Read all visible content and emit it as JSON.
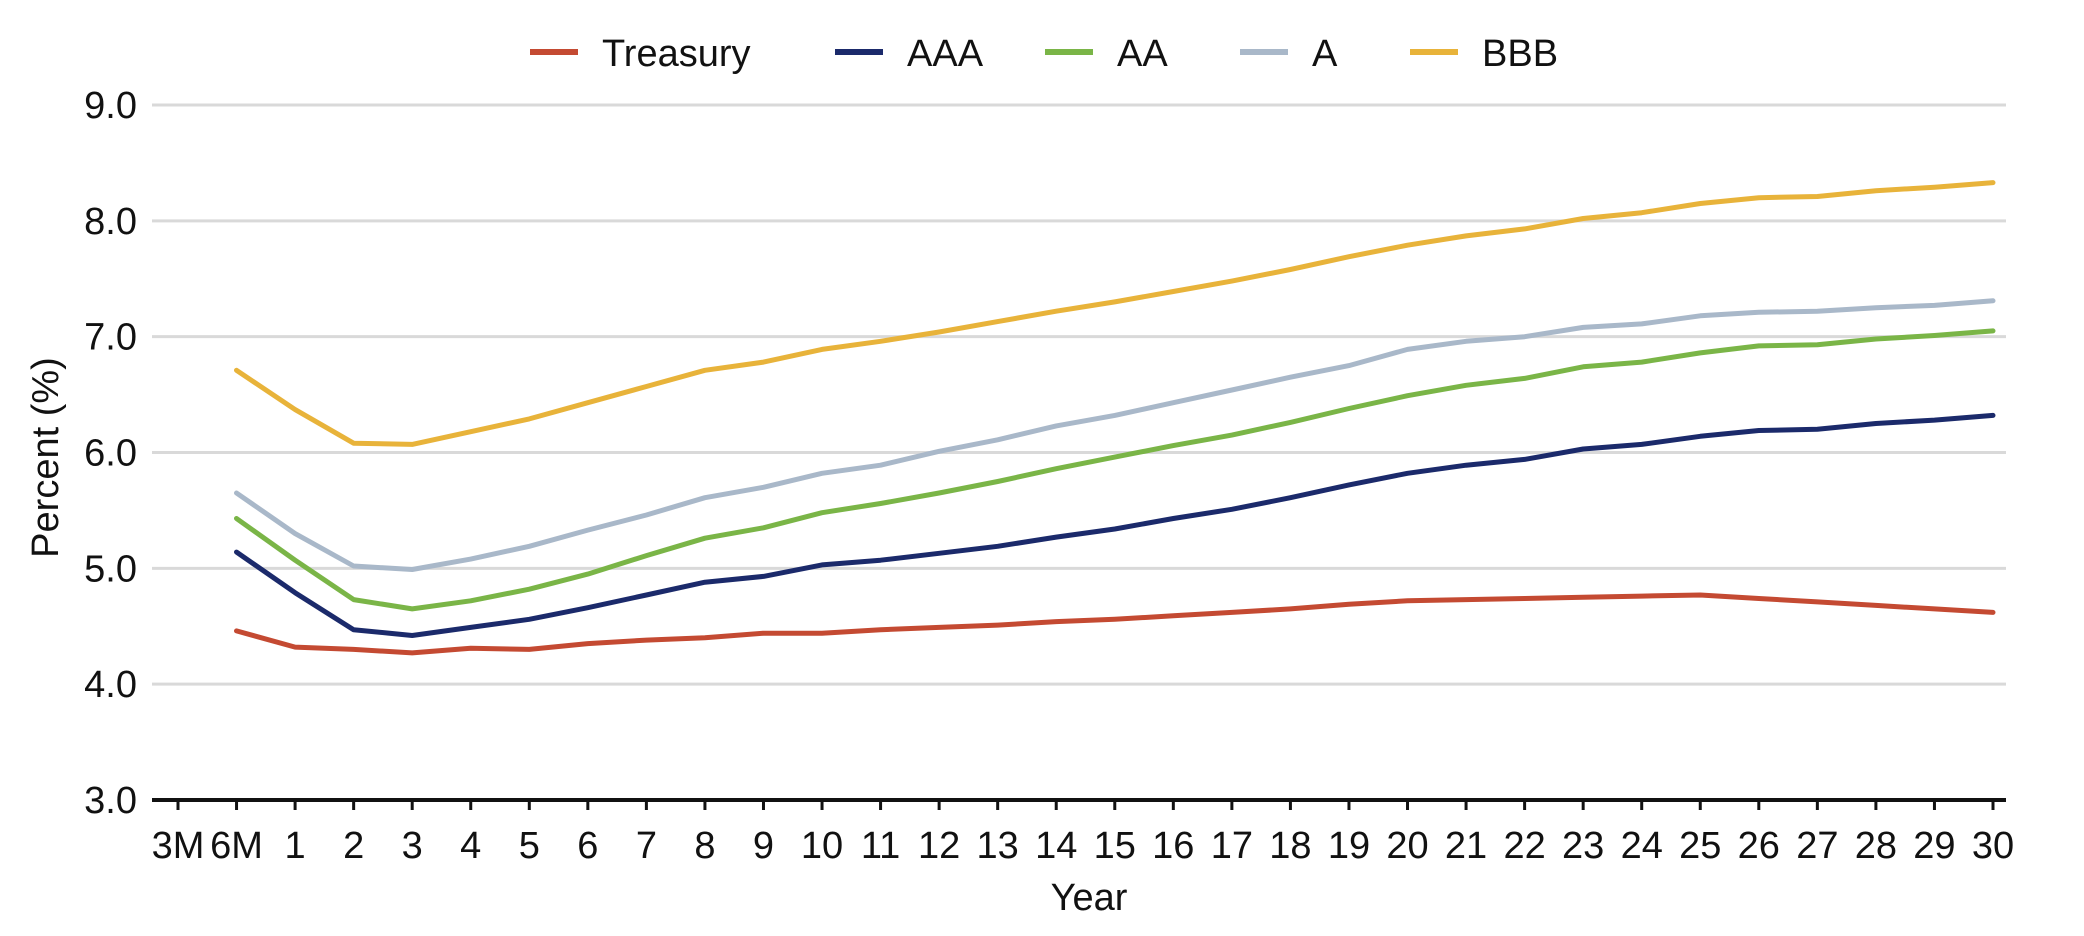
{
  "chart_data": {
    "type": "line",
    "xlabel": "Year",
    "ylabel": "Percent (%)",
    "categories": [
      "3M",
      "6M",
      "1",
      "2",
      "3",
      "4",
      "5",
      "6",
      "7",
      "8",
      "9",
      "10",
      "11",
      "12",
      "13",
      "14",
      "15",
      "16",
      "17",
      "18",
      "19",
      "20",
      "21",
      "22",
      "23",
      "24",
      "25",
      "26",
      "27",
      "28",
      "29",
      "30"
    ],
    "ylim": [
      3.0,
      9.0
    ],
    "yticks": [
      "3.0",
      "4.0",
      "5.0",
      "6.0",
      "7.0",
      "8.0",
      "9.0"
    ],
    "grid": true,
    "legend_position": "top",
    "series": [
      {
        "name": "Treasury",
        "color": "#c44a32",
        "values": [
          null,
          4.46,
          4.32,
          4.3,
          4.27,
          4.31,
          4.3,
          4.35,
          4.38,
          4.4,
          4.44,
          4.44,
          4.47,
          4.49,
          4.51,
          4.54,
          4.56,
          4.59,
          4.62,
          4.65,
          4.69,
          4.72,
          4.73,
          4.74,
          4.75,
          4.76,
          4.77,
          4.74,
          4.71,
          4.68,
          4.65,
          4.62
        ]
      },
      {
        "name": "AAA",
        "color": "#1b2a6b",
        "values": [
          null,
          5.14,
          4.79,
          4.47,
          4.42,
          4.49,
          4.56,
          4.66,
          4.77,
          4.88,
          4.93,
          5.03,
          5.07,
          5.13,
          5.19,
          5.27,
          5.34,
          5.43,
          5.51,
          5.61,
          5.72,
          5.82,
          5.89,
          5.94,
          6.03,
          6.07,
          6.14,
          6.19,
          6.2,
          6.25,
          6.28,
          6.32
        ]
      },
      {
        "name": "AA",
        "color": "#7ab547",
        "values": [
          null,
          5.43,
          5.07,
          4.73,
          4.65,
          4.72,
          4.82,
          4.95,
          5.11,
          5.26,
          5.35,
          5.48,
          5.56,
          5.65,
          5.75,
          5.86,
          5.96,
          6.06,
          6.15,
          6.26,
          6.38,
          6.49,
          6.58,
          6.64,
          6.74,
          6.78,
          6.86,
          6.92,
          6.93,
          6.98,
          7.01,
          7.05
        ]
      },
      {
        "name": "A",
        "color": "#a9b8c9",
        "values": [
          null,
          5.65,
          5.3,
          5.02,
          4.99,
          5.08,
          5.19,
          5.33,
          5.46,
          5.61,
          5.7,
          5.82,
          5.89,
          6.01,
          6.11,
          6.23,
          6.32,
          6.43,
          6.54,
          6.65,
          6.75,
          6.89,
          6.96,
          7.0,
          7.08,
          7.11,
          7.18,
          7.21,
          7.22,
          7.25,
          7.27,
          7.31
        ]
      },
      {
        "name": "BBB",
        "color": "#e8b33a",
        "values": [
          null,
          6.71,
          6.37,
          6.08,
          6.07,
          6.18,
          6.29,
          6.43,
          6.57,
          6.71,
          6.78,
          6.89,
          6.96,
          7.04,
          7.13,
          7.22,
          7.3,
          7.39,
          7.48,
          7.58,
          7.69,
          7.79,
          7.87,
          7.93,
          8.02,
          8.07,
          8.15,
          8.2,
          8.21,
          8.26,
          8.29,
          8.33
        ]
      }
    ]
  }
}
